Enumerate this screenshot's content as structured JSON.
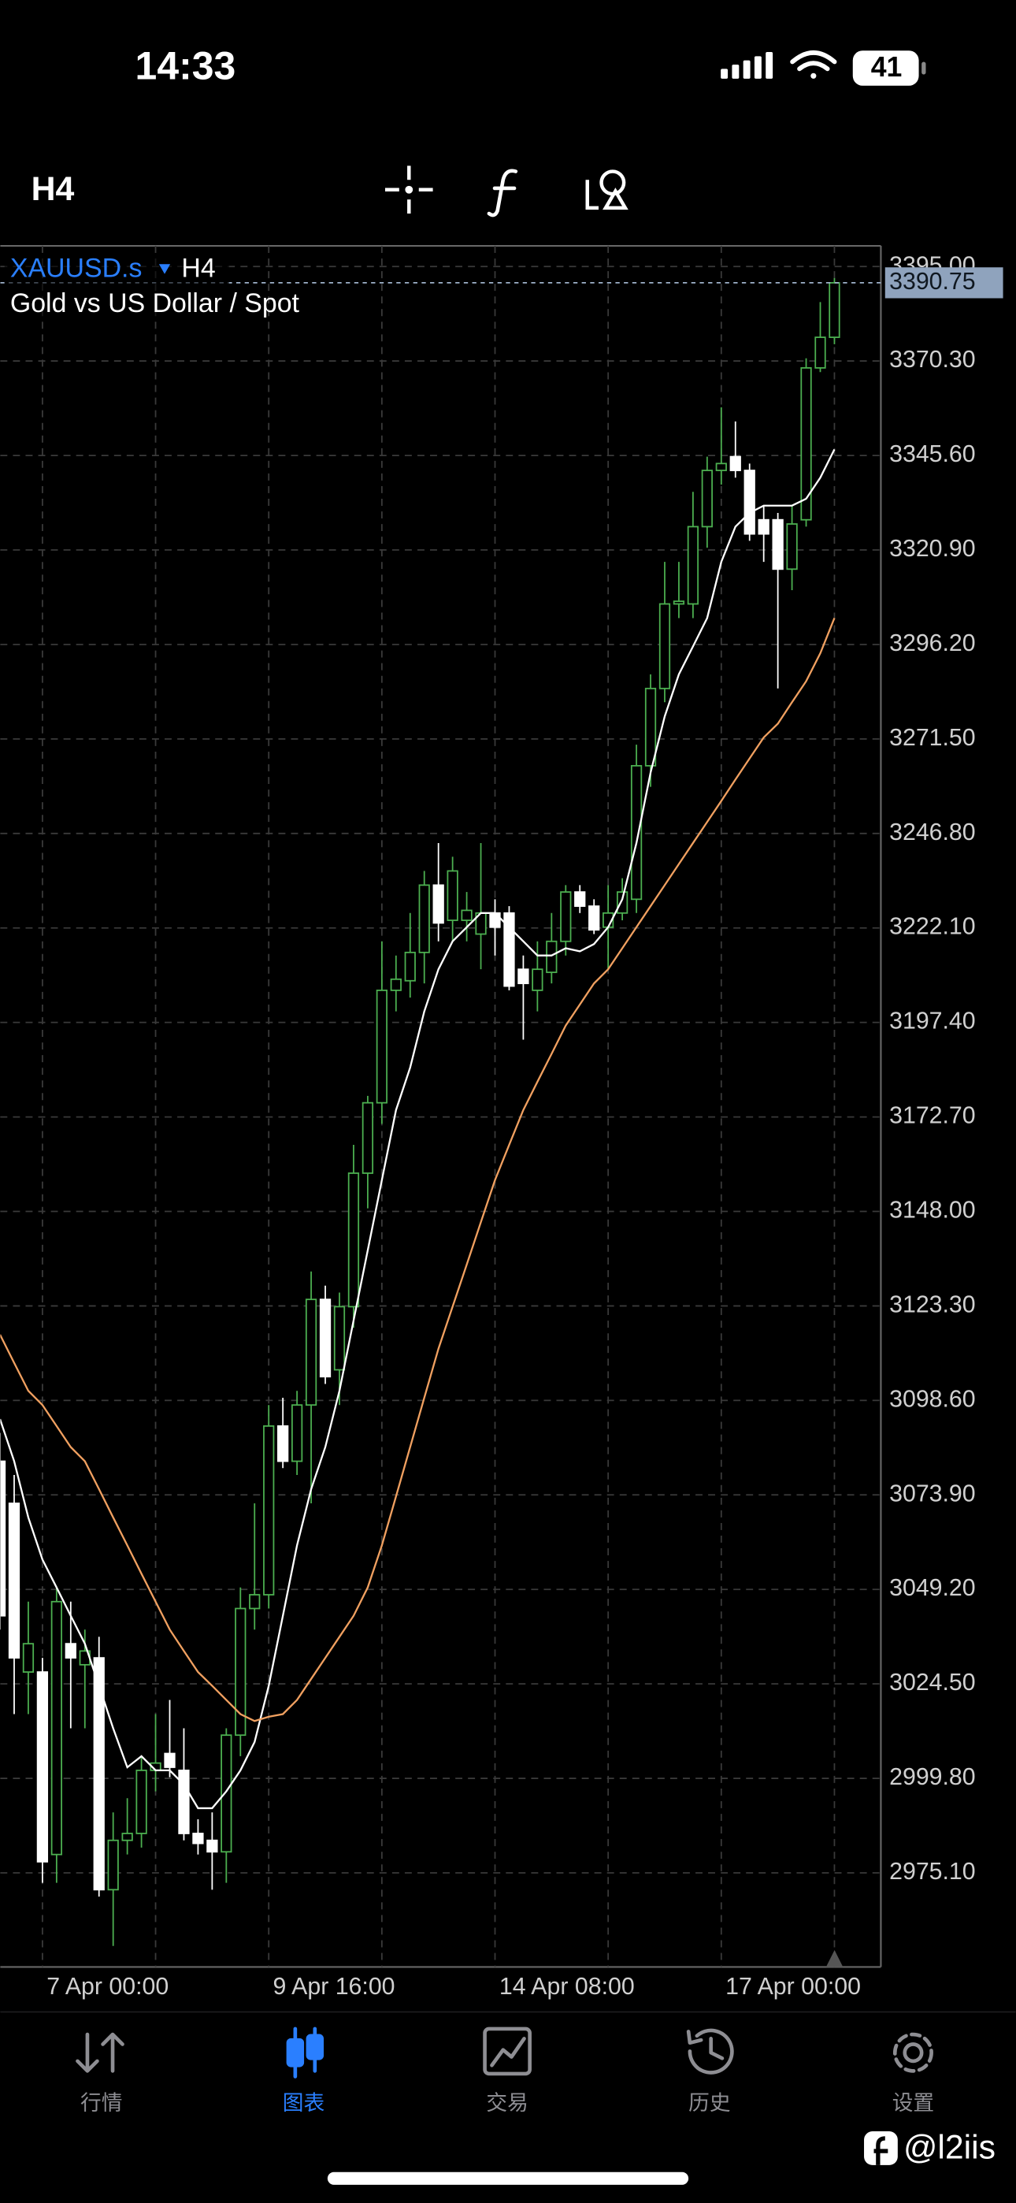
{
  "status_bar": {
    "time": "14:33",
    "battery": "41"
  },
  "toolbar": {
    "timeframe": "H4"
  },
  "chart_data": {
    "type": "candlestick",
    "symbol": "XAUUSD.s",
    "timeframe": "H4",
    "description": "Gold vs US Dollar / Spot",
    "categories": [
      null,
      null,
      null,
      "7 Apr 00:00",
      null,
      null,
      null,
      null,
      null,
      null,
      null,
      null,
      null,
      null,
      null,
      null,
      null,
      null,
      null,
      "9 Apr 16:00",
      null,
      null,
      null,
      null,
      null,
      null,
      null,
      null,
      null,
      null,
      null,
      null,
      null,
      null,
      null,
      "14 Apr 08:00",
      null,
      null,
      null,
      null,
      null,
      null,
      null,
      null,
      null,
      null,
      null,
      null,
      null,
      null,
      null,
      "17 Apr 00:00",
      null,
      null,
      null,
      null,
      null,
      null,
      null,
      null
    ],
    "open": [
      3082.7,
      3071.7,
      3027.6,
      3027.6,
      2979.9,
      3035.0,
      3029.5,
      3031.3,
      2970.7,
      2983.6,
      2985.4,
      3001.9,
      3006.3,
      3001.9,
      2985.4,
      2983.6,
      2980.6,
      3011.1,
      3044.2,
      3047.8,
      3091.9,
      3082.7,
      3097.4,
      3125.0,
      3106.6,
      3123.1,
      3158.0,
      3176.4,
      3205.8,
      3208.3,
      3215.7,
      3233.3,
      3224.1,
      3224.1,
      3220.5,
      3226.0,
      3226.0,
      3211.3,
      3205.8,
      3210.5,
      3218.6,
      3231.5,
      3227.8,
      3222.3,
      3226.0,
      3229.6,
      3264.5,
      3284.7,
      3306.8,
      3306.8,
      3327.0,
      3341.7,
      3345.3,
      3341.7,
      3328.8,
      3328.8,
      3315.9,
      3328.8,
      3368.5,
      3376.5
    ],
    "high": [
      3090.1,
      3079.1,
      3046.0,
      3031.3,
      3049.7,
      3046.0,
      3038.7,
      3036.8,
      2990.9,
      2994.6,
      3005.6,
      3016.6,
      3020.3,
      3012.9,
      2989.1,
      2990.9,
      3012.9,
      3049.7,
      3071.7,
      3097.4,
      3099.3,
      3101.1,
      3132.3,
      3128.6,
      3126.8,
      3165.4,
      3178.2,
      3218.6,
      3214.9,
      3226.0,
      3237.0,
      3244.3,
      3240.7,
      3231.5,
      3244.3,
      3229.6,
      3227.8,
      3214.9,
      3218.6,
      3226.0,
      3233.3,
      3233.3,
      3229.6,
      3233.3,
      3235.1,
      3270.0,
      3288.4,
      3317.8,
      3317.8,
      3336.1,
      3345.3,
      3358.2,
      3354.5,
      3343.5,
      3332.5,
      3330.6,
      3332.5,
      3371.0,
      3385.7,
      3392.0
    ],
    "low": [
      3038.7,
      3016.6,
      3016.6,
      2972.5,
      2972.5,
      3012.9,
      3012.9,
      2968.9,
      2956.0,
      2979.9,
      2981.7,
      2996.4,
      3000.1,
      2983.6,
      2979.9,
      2970.7,
      2972.5,
      3005.6,
      3038.7,
      3044.2,
      3080.9,
      3079.1,
      3071.7,
      3102.9,
      3097.4,
      3117.6,
      3148.8,
      3170.9,
      3200.3,
      3203.9,
      3207.6,
      3218.6,
      3218.6,
      3218.6,
      3211.3,
      3214.9,
      3205.8,
      3192.9,
      3200.3,
      3207.6,
      3214.9,
      3226.0,
      3220.5,
      3211.3,
      3224.1,
      3226.0,
      3259.0,
      3281.1,
      3303.1,
      3303.1,
      3321.5,
      3338.0,
      3339.8,
      3323.3,
      3317.8,
      3284.7,
      3310.4,
      3327.0,
      3367.4,
      3374.7
    ],
    "close": [
      3042.3,
      3031.3,
      3035.0,
      2978.0,
      3046.0,
      3031.3,
      3033.1,
      2970.7,
      2983.6,
      2985.4,
      3001.9,
      3003.8,
      3002.7,
      2985.4,
      2982.8,
      2980.6,
      3011.1,
      3044.2,
      3047.8,
      3091.9,
      3082.7,
      3097.4,
      3125.0,
      3104.8,
      3123.1,
      3158.0,
      3176.4,
      3205.8,
      3208.7,
      3215.7,
      3233.3,
      3223.4,
      3237.0,
      3226.7,
      3226.0,
      3222.3,
      3206.9,
      3207.6,
      3211.3,
      3218.6,
      3231.5,
      3227.8,
      3221.6,
      3226.0,
      3231.5,
      3264.5,
      3284.7,
      3306.8,
      3307.5,
      3327.0,
      3341.7,
      3343.5,
      3341.7,
      3325.1,
      3325.1,
      3315.9,
      3327.7,
      3368.5,
      3376.5,
      3390.75
    ],
    "up_color": "#4caf50",
    "down_color": "#ffffff",
    "overlays": [
      {
        "color": "#ffffff",
        "values": [
          3093.7,
          3082.7,
          3068.0,
          3057.0,
          3049.7,
          3042.3,
          3035.0,
          3024.0,
          3012.9,
          3002.7,
          3005.6,
          3001.9,
          3001.9,
          2998.2,
          2992.0,
          2992.0,
          2996.4,
          3001.9,
          3009.3,
          3024.0,
          3042.3,
          3060.7,
          3075.4,
          3086.4,
          3101.1,
          3119.5,
          3137.8,
          3156.2,
          3174.5,
          3185.6,
          3200.3,
          3211.3,
          3218.6,
          3222.3,
          3226.0,
          3226.0,
          3222.3,
          3218.6,
          3214.9,
          3214.9,
          3216.8,
          3216.0,
          3217.9,
          3222.3,
          3229.6,
          3244.3,
          3262.7,
          3277.4,
          3288.4,
          3295.7,
          3303.1,
          3317.8,
          3327.0,
          3330.6,
          3332.5,
          3332.5,
          3332.5,
          3334.3,
          3339.8,
          3347.2
        ]
      },
      {
        "color": "#f0a060",
        "values": [
          3115.8,
          3108.4,
          3101.1,
          3097.4,
          3091.9,
          3086.4,
          3082.7,
          3075.4,
          3068.0,
          3060.7,
          3053.3,
          3046.0,
          3038.7,
          3033.1,
          3027.6,
          3024.0,
          3020.3,
          3016.6,
          3014.8,
          3015.9,
          3016.6,
          3020.3,
          3025.8,
          3031.3,
          3036.8,
          3042.3,
          3049.7,
          3060.7,
          3073.5,
          3086.4,
          3099.3,
          3112.1,
          3123.1,
          3134.1,
          3145.2,
          3156.2,
          3165.4,
          3174.5,
          3181.9,
          3189.2,
          3196.6,
          3202.1,
          3207.6,
          3211.3,
          3216.8,
          3222.3,
          3227.8,
          3233.3,
          3238.8,
          3244.3,
          3249.8,
          3255.3,
          3260.9,
          3266.4,
          3271.9,
          3275.5,
          3281.1,
          3286.6,
          3293.9,
          3303.1
        ]
      }
    ],
    "last_price": 3390.75,
    "ylim": [
      2950.5,
      3400.4
    ],
    "yticks": [
      {
        "value": 3395.0,
        "label": "3395.00"
      },
      {
        "value": 3370.3,
        "label": "3370.30"
      },
      {
        "value": 3345.6,
        "label": "3345.60"
      },
      {
        "value": 3320.9,
        "label": "3320.90"
      },
      {
        "value": 3296.2,
        "label": "3296.20"
      },
      {
        "value": 3271.5,
        "label": "3271.50"
      },
      {
        "value": 3246.8,
        "label": "3246.80"
      },
      {
        "value": 3222.1,
        "label": "3222.10"
      },
      {
        "value": 3197.4,
        "label": "3197.40"
      },
      {
        "value": 3172.7,
        "label": "3172.70"
      },
      {
        "value": 3148.0,
        "label": "3148.00"
      },
      {
        "value": 3123.3,
        "label": "3123.30"
      },
      {
        "value": 3098.6,
        "label": "3098.60"
      },
      {
        "value": 3073.9,
        "label": "3073.90"
      },
      {
        "value": 3049.2,
        "label": "3049.20"
      },
      {
        "value": 3024.5,
        "label": "3024.50"
      },
      {
        "value": 2999.8,
        "label": "2999.80"
      },
      {
        "value": 2975.1,
        "label": "2975.10"
      }
    ],
    "grid": true
  },
  "tab_bar": {
    "tabs": [
      "行情",
      "图表",
      "交易",
      "历史",
      "设置"
    ],
    "active": 1
  },
  "watermark": "@l2iis"
}
